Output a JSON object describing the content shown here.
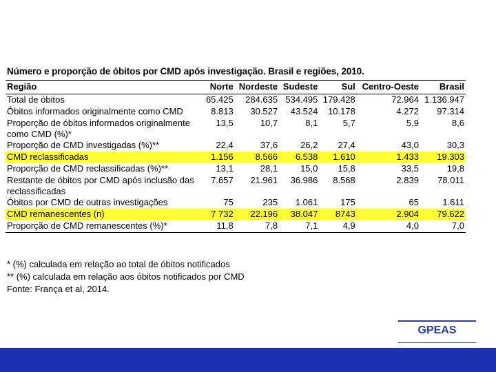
{
  "title": "Número e proporção de óbitos por CMD após investigação. Brasil e regiões, 2010.",
  "table": {
    "header": [
      "Região",
      "Norte",
      "Nordeste",
      "Sudeste",
      "Sul",
      "Centro-Oeste",
      "Brasil"
    ],
    "rows": [
      [
        "Total de óbitos",
        "65.425",
        "284.635",
        "534.495",
        "179.428",
        "72.964",
        "1.136.947"
      ],
      [
        "Óbitos informados originalmente como CMD",
        "8.813",
        "30.527",
        "43.524",
        "10.178",
        "4.272",
        "97.314"
      ],
      [
        "Proporção de óbitos informados originalmente como CMD (%)*",
        "13,5",
        "10,7",
        "8,1",
        "5,7",
        "5,9",
        "8,6"
      ],
      [
        "Proporção de CMD investigadas (%)**",
        "22,4",
        "37,6",
        "26,2",
        "27,4",
        "43,0",
        "30,3"
      ],
      [
        "CMD reclassificadas",
        "1.156",
        "8.566",
        "6.538",
        "1.610",
        "1.433",
        "19.303"
      ],
      [
        "Proporção de CMD reclassificadas (%)**",
        "13,1",
        "28,1",
        "15,0",
        "15,8",
        "33,5",
        "19,8"
      ],
      [
        "Restante de óbitos por CMD após inclusão das reclassificadas",
        "7.657",
        "21.961",
        "36.986",
        "8.568",
        "2.839",
        "78.011"
      ],
      [
        "Óbitos por CMD de outras investigações",
        "75",
        "235",
        "1.061",
        "175",
        "65",
        "1.611"
      ],
      [
        "CMD remanescentes (n)",
        "7 732",
        "22.196",
        "38.047",
        "8743",
        "2.904",
        "79.622"
      ],
      [
        "Proporção de CMD remanescentes (%)*",
        "11,8",
        "7,8",
        "7,1",
        "4,9",
        "4,0",
        "7,0"
      ]
    ],
    "highlight_rows": [
      4,
      8
    ]
  },
  "footnotes": [
    "* (%) calculada em relação ao total de óbitos notificados",
    "** (%) calculada em relação aos óbitos notificados por CMD",
    "Fonte: França et al, 2014."
  ],
  "logo": "GPEAS"
}
